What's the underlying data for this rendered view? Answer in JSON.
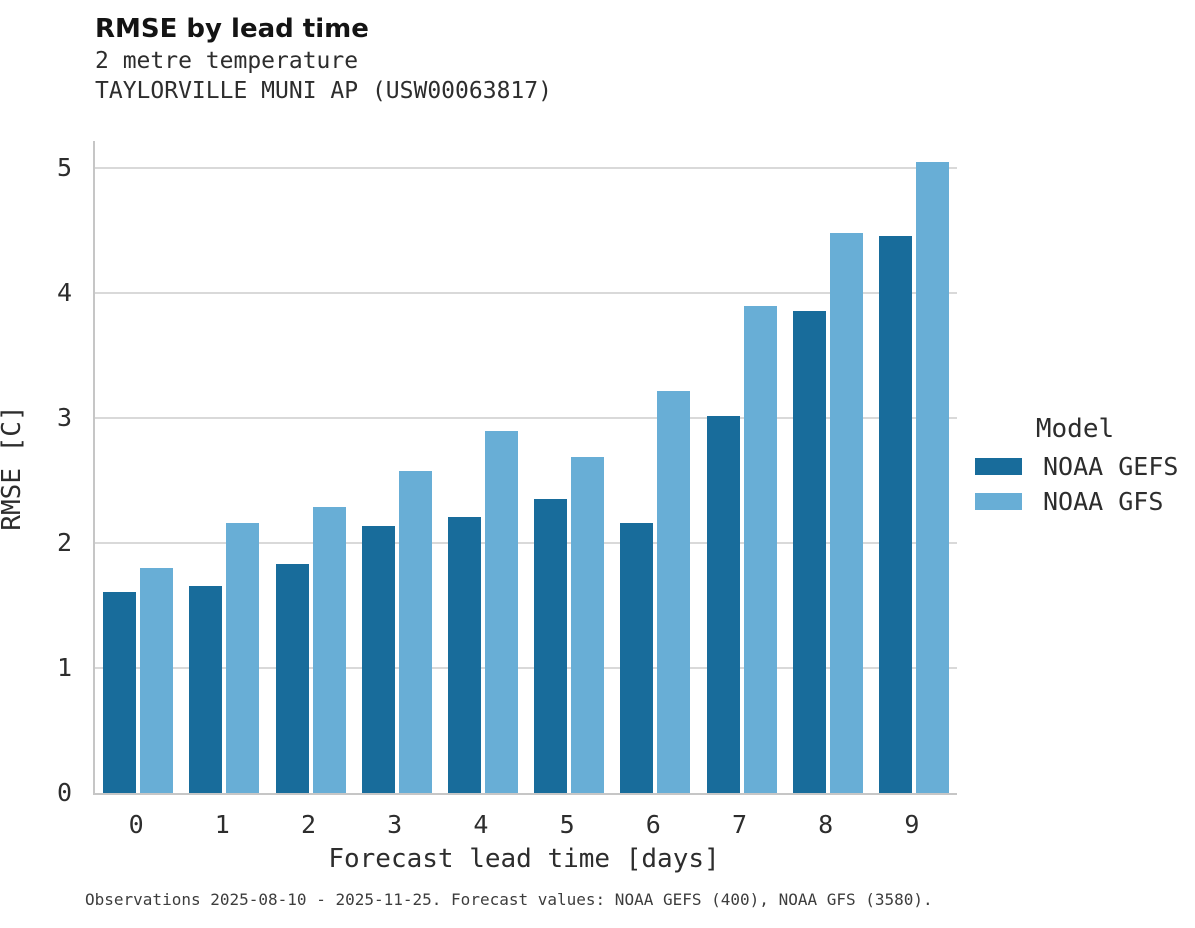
{
  "chart_data": {
    "type": "bar",
    "title": "RMSE by lead time",
    "subtitle": "2 metre temperature",
    "subtitle2": "TAYLORVILLE MUNI AP (USW00063817)",
    "xlabel": "Forecast lead time [days]",
    "ylabel": "RMSE [C]",
    "categories": [
      "0",
      "1",
      "2",
      "3",
      "4",
      "5",
      "6",
      "7",
      "8",
      "9"
    ],
    "series": [
      {
        "name": "NOAA GEFS",
        "color": "#186c9b",
        "values": [
          1.61,
          1.66,
          1.83,
          2.14,
          2.21,
          2.35,
          2.16,
          3.02,
          3.86,
          4.46
        ]
      },
      {
        "name": "NOAA GFS",
        "color": "#68aed6",
        "values": [
          1.8,
          2.16,
          2.29,
          2.58,
          2.9,
          2.69,
          3.22,
          3.9,
          4.48,
          5.05
        ]
      }
    ],
    "ylim": [
      0,
      5.22
    ],
    "yticks": [
      0,
      1,
      2,
      3,
      4,
      5
    ],
    "grid": "horizontal",
    "legend_title": "Model",
    "legend_position": "right",
    "caption": "Observations 2025-08-10 - 2025-11-25. Forecast values: NOAA GEFS (400), NOAA GFS (3580)."
  },
  "style_colors": {
    "gefs_bar": "#186c9b",
    "gfs_bar": "#68aed6",
    "gridline": "#d9d9d9",
    "spine": "#c6c6c6",
    "text": "#2d2d2d"
  }
}
